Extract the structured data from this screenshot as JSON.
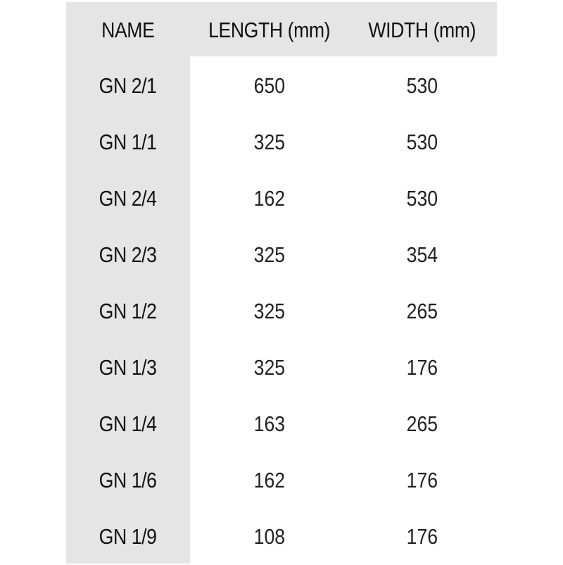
{
  "table": {
    "headers": [
      "NAME",
      "LENGTH (mm)",
      "WIDTH (mm)"
    ],
    "rows": [
      [
        "GN 2/1",
        "650",
        "530"
      ],
      [
        "GN 1/1",
        "325",
        "530"
      ],
      [
        "GN 2/4",
        "162",
        "530"
      ],
      [
        "GN 2/3",
        "325",
        "354"
      ],
      [
        "GN 1/2",
        "325",
        "265"
      ],
      [
        "GN 1/3",
        "325",
        "176"
      ],
      [
        "GN 1/4",
        "163",
        "265"
      ],
      [
        "GN 1/6",
        "162",
        "176"
      ],
      [
        "GN 1/9",
        "108",
        "176"
      ]
    ]
  },
  "colors": {
    "header_bg": "#e6e5e5",
    "text": "#1a1a1a"
  }
}
